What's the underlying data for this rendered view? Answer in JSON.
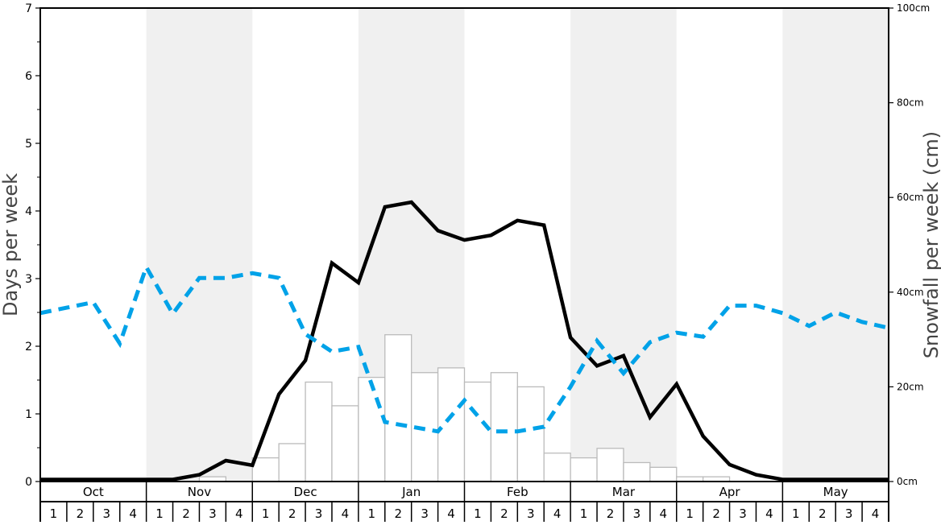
{
  "chart_data": {
    "type": "bar+line",
    "ylabel": "Days per week",
    "ylabel_right": "Snowfall per week (cm)",
    "ylim": [
      0,
      7
    ],
    "ylim_right": [
      0,
      100
    ],
    "yticks": [
      "0",
      "1",
      "2",
      "3",
      "4",
      "5",
      "6",
      "7"
    ],
    "yticks_right": [
      "0cm",
      "20cm",
      "40cm",
      "60cm",
      "80cm",
      "100cm"
    ],
    "months": [
      "Oct",
      "Nov",
      "Dec",
      "Jan",
      "Feb",
      "Mar",
      "Apr",
      "May"
    ],
    "weeks": [
      "1",
      "2",
      "3",
      "4"
    ],
    "shaded_months": [
      "Nov",
      "Jan",
      "Mar",
      "May"
    ],
    "colors": {
      "line_solid": "#000000",
      "line_dashed": "#00a2e8",
      "bars": "#ffffff",
      "bar_edge": "#bbbbbb",
      "shade": "#f0f0f0"
    },
    "bars_cm": [
      0,
      0,
      0,
      0,
      0,
      0,
      1,
      0,
      5,
      8,
      21,
      16,
      22,
      31,
      23,
      24,
      21,
      23,
      20,
      6,
      5,
      7,
      4,
      3,
      1,
      1,
      0,
      0,
      0,
      0,
      0,
      0
    ],
    "series": [
      {
        "style": "solid",
        "axis": "left",
        "values": [
          0.03,
          0.03,
          0.03,
          0.03,
          0.03,
          0.03,
          0.1,
          0.31,
          0.24,
          1.29,
          1.79,
          3.23,
          2.94,
          4.06,
          4.13,
          3.71,
          3.57,
          3.64,
          3.86,
          3.79,
          2.13,
          1.71,
          1.86,
          0.95,
          1.44,
          0.67,
          0.25,
          0.1,
          0.03,
          0.03,
          0.03,
          0.03,
          0.03
        ]
      },
      {
        "style": "dashed",
        "axis": "left",
        "values": [
          2.49,
          2.57,
          2.65,
          2.04,
          3.17,
          2.48,
          3.01,
          3.01,
          3.08,
          3.01,
          2.18,
          1.92,
          1.99,
          0.88,
          0.81,
          0.74,
          1.2,
          0.74,
          0.74,
          0.81,
          1.4,
          2.08,
          1.6,
          2.06,
          2.2,
          2.14,
          2.6,
          2.6,
          2.49,
          2.3,
          2.5,
          2.36,
          2.27
        ]
      }
    ]
  }
}
